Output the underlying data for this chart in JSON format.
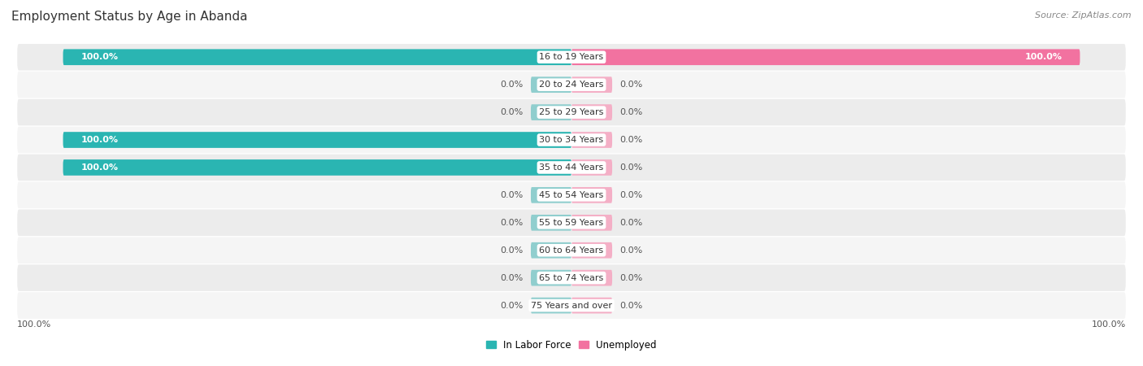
{
  "title": "Employment Status by Age in Abanda",
  "source": "Source: ZipAtlas.com",
  "categories": [
    "16 to 19 Years",
    "20 to 24 Years",
    "25 to 29 Years",
    "30 to 34 Years",
    "35 to 44 Years",
    "45 to 54 Years",
    "55 to 59 Years",
    "60 to 64 Years",
    "65 to 74 Years",
    "75 Years and over"
  ],
  "labor_force": [
    100.0,
    0.0,
    0.0,
    100.0,
    100.0,
    0.0,
    0.0,
    0.0,
    0.0,
    0.0
  ],
  "unemployed": [
    100.0,
    0.0,
    0.0,
    0.0,
    0.0,
    0.0,
    0.0,
    0.0,
    0.0,
    0.0
  ],
  "color_labor_full": "#2ab5b2",
  "color_unemployed_full": "#f272a0",
  "color_labor_zero": "#90cece",
  "color_unemployed_zero": "#f4afc6",
  "row_colors": [
    "#ececec",
    "#f5f5f5"
  ],
  "bar_height": 0.58,
  "zero_stub": 8.0,
  "figsize": [
    14.06,
    4.5
  ],
  "dpi": 100,
  "xlim": 110,
  "legend_labor": "In Labor Force",
  "legend_unemployed": "Unemployed"
}
